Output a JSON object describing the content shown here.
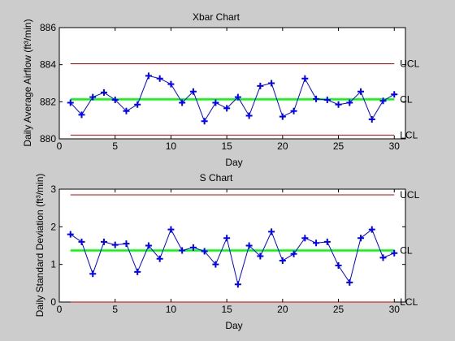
{
  "colors": {
    "figure_bg": "#cccccc",
    "axes_bg": "#ffffff",
    "data": "#0000ff",
    "center_line": "#00ff00",
    "control_limits": "#cc0000"
  },
  "chart_data": [
    {
      "type": "line",
      "title": "Xbar Chart",
      "xlabel": "Day",
      "ylabel": "Daily Average Airflow (ft³/min)",
      "xlim": [
        0,
        31
      ],
      "ylim": [
        880,
        886
      ],
      "xticks": [
        0,
        5,
        10,
        15,
        20,
        25,
        30
      ],
      "yticks": [
        880,
        882,
        884,
        886
      ],
      "grid": false,
      "marker": "+",
      "x": [
        1,
        2,
        3,
        4,
        5,
        6,
        7,
        8,
        9,
        10,
        11,
        12,
        13,
        14,
        15,
        16,
        17,
        18,
        19,
        20,
        21,
        22,
        23,
        24,
        25,
        26,
        27,
        28,
        29,
        30
      ],
      "values": [
        881.95,
        881.3,
        882.25,
        882.5,
        882.1,
        881.5,
        881.85,
        883.4,
        883.25,
        882.95,
        881.95,
        882.55,
        880.95,
        881.95,
        881.65,
        882.25,
        881.25,
        882.85,
        883.0,
        881.2,
        881.5,
        883.25,
        882.15,
        882.1,
        881.85,
        881.95,
        882.55,
        881.05,
        882.05,
        882.4
      ],
      "limits": [
        {
          "label": "UCL",
          "value": 884.05
        },
        {
          "label": "CL",
          "value": 882.13
        },
        {
          "label": "LCL",
          "value": 880.2
        }
      ]
    },
    {
      "type": "line",
      "title": "S Chart",
      "xlabel": "Day",
      "ylabel": "Daily Standard Deviation (ft³/min)",
      "xlim": [
        0,
        31
      ],
      "ylim": [
        0,
        3
      ],
      "xticks": [
        0,
        5,
        10,
        15,
        20,
        25,
        30
      ],
      "yticks": [
        0,
        1,
        2,
        3
      ],
      "grid": false,
      "marker": "+",
      "x": [
        1,
        2,
        3,
        4,
        5,
        6,
        7,
        8,
        9,
        10,
        11,
        12,
        13,
        14,
        15,
        16,
        17,
        18,
        19,
        20,
        21,
        22,
        23,
        24,
        25,
        26,
        27,
        28,
        29,
        30
      ],
      "values": [
        1.8,
        1.6,
        0.75,
        1.6,
        1.52,
        1.55,
        0.8,
        1.5,
        1.15,
        1.93,
        1.37,
        1.45,
        1.35,
        1.0,
        1.7,
        0.47,
        1.5,
        1.22,
        1.87,
        1.1,
        1.28,
        1.7,
        1.57,
        1.6,
        0.97,
        0.52,
        1.7,
        1.93,
        1.18,
        1.3
      ],
      "limits": [
        {
          "label": "UCL",
          "value": 2.85
        },
        {
          "label": "CL",
          "value": 1.37
        },
        {
          "label": "LCL",
          "value": 0.0
        }
      ]
    }
  ]
}
